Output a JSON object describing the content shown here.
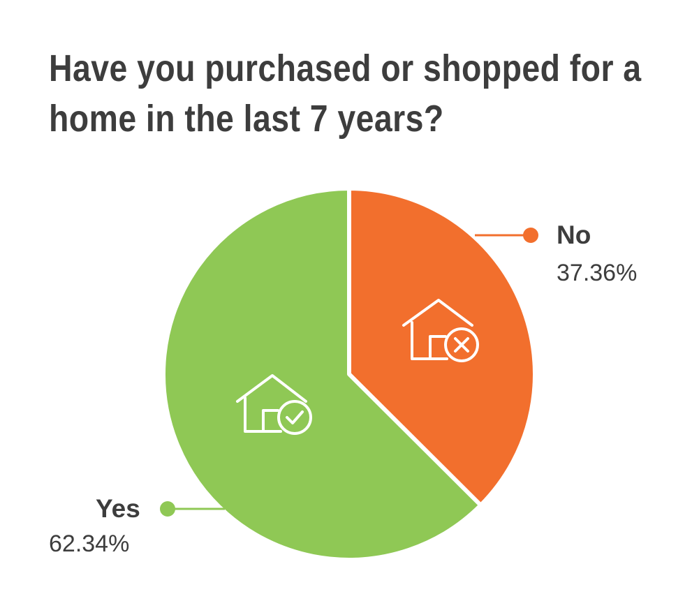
{
  "chart_data": {
    "type": "pie",
    "title_lines": [
      "Have you purchased or shopped for a",
      "home in the last 7 years?"
    ],
    "slices": [
      {
        "label": "No",
        "value": 37.36,
        "value_label": "37.36%",
        "color": "#f26f2d",
        "icon": "house-x-icon"
      },
      {
        "label": "Yes",
        "value": 62.34,
        "value_label": "62.34%",
        "color": "#8fc855",
        "icon": "house-check-icon"
      }
    ],
    "legend": "callout labels with dot markers"
  }
}
